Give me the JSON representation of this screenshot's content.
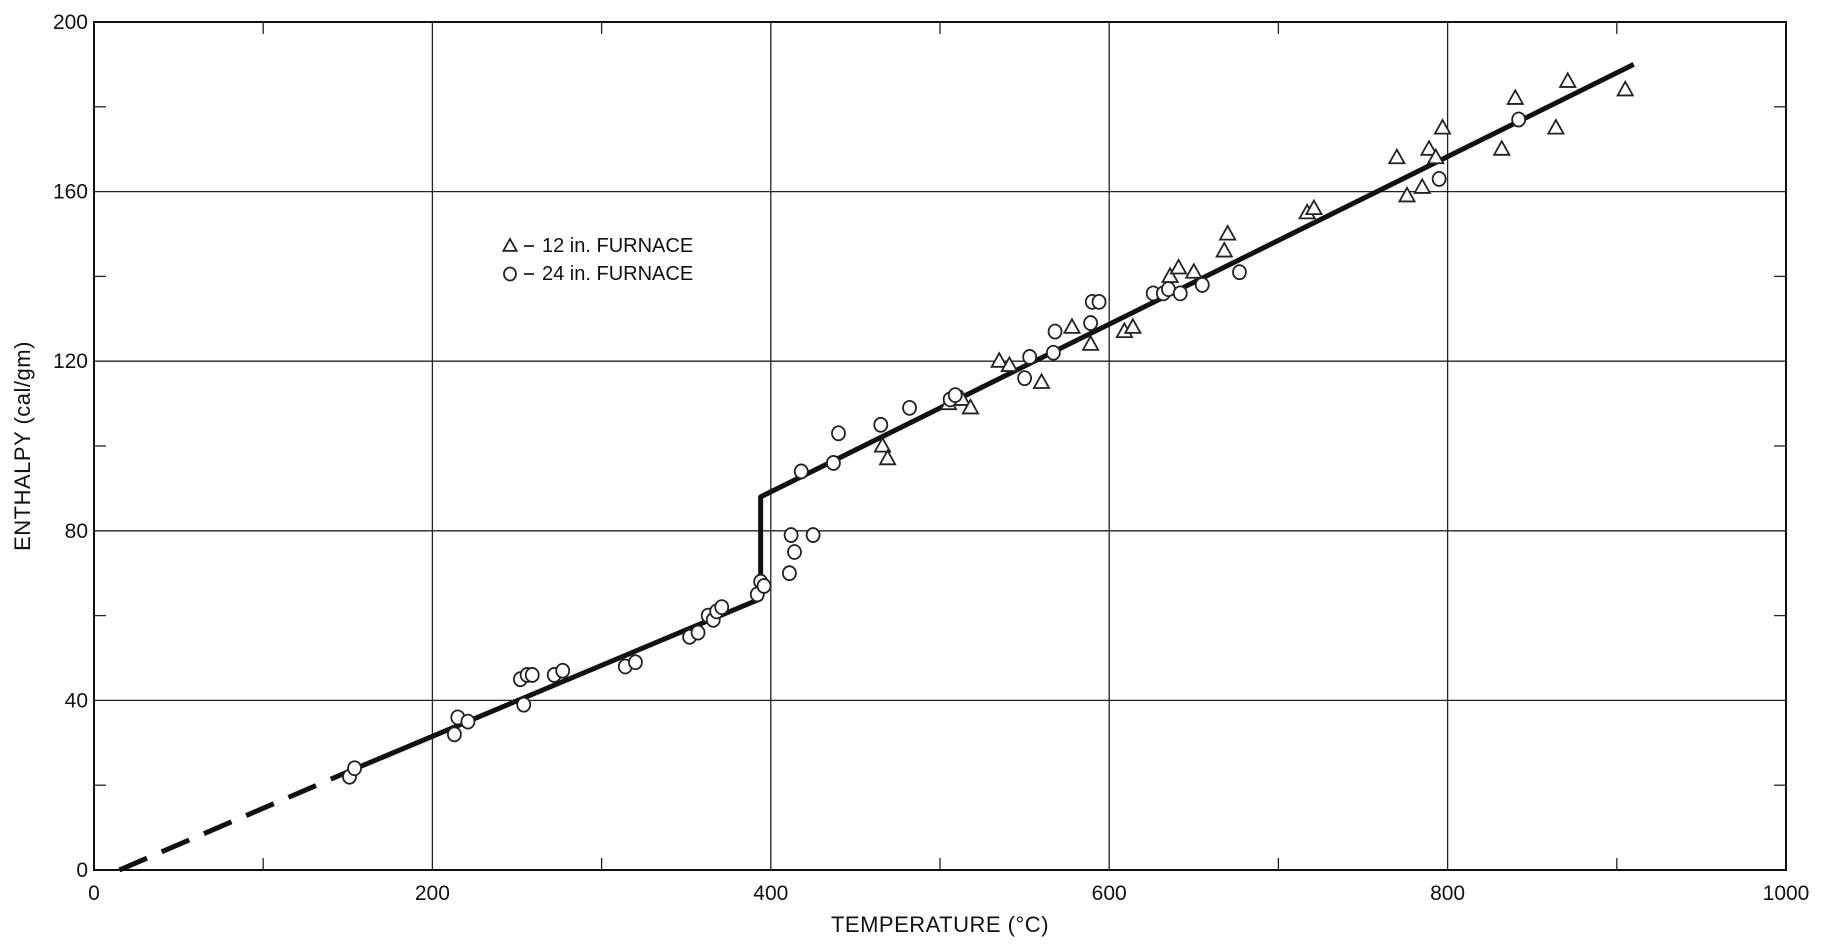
{
  "chart_data": {
    "type": "scatter",
    "title": "",
    "xlabel": "TEMPERATURE (°C)",
    "ylabel": "ENTHALPY (cal/gm)",
    "xlim": [
      0,
      1000
    ],
    "ylim": [
      0,
      200
    ],
    "xticks": [
      0,
      200,
      400,
      600,
      800,
      1000
    ],
    "yticks": [
      0,
      40,
      80,
      120,
      160,
      200
    ],
    "grid": true,
    "legend": {
      "placement": "upper-left",
      "entries": [
        {
          "symbol": "triangle",
          "label": "12 in. FURNACE"
        },
        {
          "symbol": "circle",
          "label": "24 in. FURNACE"
        }
      ]
    },
    "series": [
      {
        "name": "12 in. FURNACE",
        "marker": "triangle",
        "points": [
          [
            466,
            100
          ],
          [
            469,
            97
          ],
          [
            505,
            110
          ],
          [
            513,
            111
          ],
          [
            518,
            109
          ],
          [
            535,
            120
          ],
          [
            541,
            119
          ],
          [
            560,
            115
          ],
          [
            578,
            128
          ],
          [
            589,
            124
          ],
          [
            609,
            127
          ],
          [
            614,
            128
          ],
          [
            634,
            137
          ],
          [
            636,
            140
          ],
          [
            641,
            142
          ],
          [
            650,
            141
          ],
          [
            668,
            146
          ],
          [
            670,
            150
          ],
          [
            717,
            155
          ],
          [
            721,
            156
          ],
          [
            770,
            168
          ],
          [
            776,
            159
          ],
          [
            785,
            161
          ],
          [
            789,
            170
          ],
          [
            793,
            168
          ],
          [
            797,
            175
          ],
          [
            832,
            170
          ],
          [
            840,
            182
          ],
          [
            864,
            175
          ],
          [
            871,
            186
          ],
          [
            905,
            184
          ]
        ]
      },
      {
        "name": "24 in. FURNACE",
        "marker": "circle",
        "points": [
          [
            151,
            22
          ],
          [
            154,
            24
          ],
          [
            213,
            32
          ],
          [
            215,
            36
          ],
          [
            221,
            35
          ],
          [
            252,
            45
          ],
          [
            254,
            39
          ],
          [
            256,
            46
          ],
          [
            259,
            46
          ],
          [
            272,
            46
          ],
          [
            277,
            47
          ],
          [
            314,
            48
          ],
          [
            320,
            49
          ],
          [
            352,
            55
          ],
          [
            357,
            56
          ],
          [
            363,
            60
          ],
          [
            366,
            59
          ],
          [
            368,
            61
          ],
          [
            371,
            62
          ],
          [
            392,
            65
          ],
          [
            394,
            68
          ],
          [
            396,
            67
          ],
          [
            411,
            70
          ],
          [
            412,
            79
          ],
          [
            414,
            75
          ],
          [
            418,
            94
          ],
          [
            425,
            79
          ],
          [
            437,
            96
          ],
          [
            440,
            103
          ],
          [
            465,
            105
          ],
          [
            482,
            109
          ],
          [
            506,
            111
          ],
          [
            509,
            112
          ],
          [
            550,
            116
          ],
          [
            553,
            121
          ],
          [
            567,
            122
          ],
          [
            568,
            127
          ],
          [
            589,
            129
          ],
          [
            590,
            134
          ],
          [
            594,
            134
          ],
          [
            626,
            136
          ],
          [
            632,
            136
          ],
          [
            635,
            137
          ],
          [
            642,
            136
          ],
          [
            655,
            138
          ],
          [
            677,
            141
          ],
          [
            795,
            163
          ],
          [
            842,
            177
          ]
        ]
      }
    ],
    "fit_line": {
      "extrapolated": [
        [
          15,
          0
        ],
        [
          155,
          24
        ]
      ],
      "segments": [
        [
          [
            155,
            24
          ],
          [
            394,
            64
          ]
        ],
        [
          [
            394,
            64
          ],
          [
            394,
            88
          ]
        ],
        [
          [
            394,
            88
          ],
          [
            910,
            190
          ]
        ]
      ]
    },
    "colors": {
      "line": "#111111",
      "grid": "#222222",
      "marker": "#222222"
    }
  }
}
